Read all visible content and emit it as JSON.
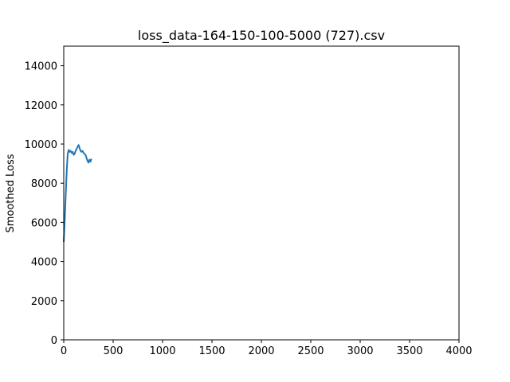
{
  "chart_data": {
    "type": "line",
    "title": "loss_data-164-150-100-5000 (727).csv",
    "xlabel": "",
    "ylabel": "Smoothed Loss",
    "xlim": [
      0,
      4000
    ],
    "ylim": [
      0,
      15000
    ],
    "xticks": [
      0,
      500,
      1000,
      1500,
      2000,
      2500,
      3000,
      3500,
      4000
    ],
    "yticks": [
      0,
      2000,
      4000,
      6000,
      8000,
      10000,
      12000,
      14000
    ],
    "grid": false,
    "legend": "none",
    "series": [
      {
        "color": "#1f77b4",
        "x": [
          0,
          10,
          20,
          30,
          40,
          50,
          60,
          70,
          80,
          90,
          100,
          110,
          120,
          130,
          140,
          150,
          160,
          170,
          180,
          190,
          200,
          210,
          220,
          230,
          240,
          250,
          260,
          270,
          280
        ],
        "y": [
          5000,
          6100,
          7400,
          8600,
          9500,
          9700,
          9600,
          9650,
          9550,
          9600,
          9450,
          9500,
          9650,
          9750,
          9850,
          9950,
          9800,
          9650,
          9600,
          9650,
          9550,
          9500,
          9450,
          9300,
          9150,
          9050,
          9200,
          9100,
          9250
        ]
      }
    ]
  }
}
